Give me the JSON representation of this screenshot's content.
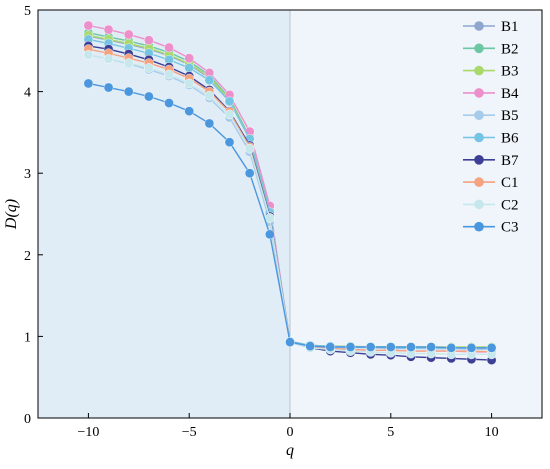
{
  "chart_data": {
    "type": "line",
    "title": "",
    "xlabel": "q",
    "ylabel": "D(q)",
    "xlim": [
      -12.5,
      12.5
    ],
    "ylim": [
      0,
      5
    ],
    "xticks": [
      -10,
      -5,
      0,
      5,
      10
    ],
    "xtick_labels": [
      "−10",
      "−5",
      "0",
      "5",
      "10"
    ],
    "yticks": [
      0,
      1,
      2,
      3,
      4,
      5
    ],
    "ytick_labels": [
      "0",
      "1",
      "2",
      "3",
      "4",
      "5"
    ],
    "grid": false,
    "legend_position": "top-right",
    "shaded_regions": [
      {
        "x_range": [
          -12.5,
          0
        ],
        "color": "#e1edf6"
      },
      {
        "x_range": [
          0,
          12.5
        ],
        "color": "#eff5fb"
      }
    ],
    "vertical_line_x": 0,
    "x": [
      -10,
      -9,
      -8,
      -7,
      -6,
      -5,
      -4,
      -3,
      -2,
      -1,
      0,
      1,
      2,
      3,
      4,
      5,
      6,
      7,
      8,
      9,
      10
    ],
    "series": [
      {
        "name": "B1",
        "color": "#8fa6ce",
        "values": [
          4.68,
          4.63,
          4.58,
          4.52,
          4.44,
          4.33,
          4.17,
          3.9,
          3.42,
          2.52,
          0.93,
          0.88,
          0.87,
          0.86,
          0.86,
          0.86,
          0.86,
          0.85,
          0.85,
          0.85,
          0.85
        ]
      },
      {
        "name": "B2",
        "color": "#6dc7a5",
        "values": [
          4.72,
          4.67,
          4.62,
          4.56,
          4.48,
          4.37,
          4.2,
          3.92,
          3.44,
          2.54,
          0.94,
          0.89,
          0.88,
          0.87,
          0.87,
          0.87,
          0.86,
          0.86,
          0.86,
          0.86,
          0.86
        ]
      },
      {
        "name": "B3",
        "color": "#a9d86b",
        "values": [
          4.69,
          4.64,
          4.59,
          4.53,
          4.45,
          4.34,
          4.18,
          3.9,
          3.42,
          2.52,
          0.93,
          0.89,
          0.88,
          0.88,
          0.87,
          0.87,
          0.87,
          0.87,
          0.87,
          0.87,
          0.87
        ]
      },
      {
        "name": "B4",
        "color": "#ec8fca",
        "values": [
          4.81,
          4.76,
          4.7,
          4.63,
          4.54,
          4.41,
          4.23,
          3.96,
          3.51,
          2.6,
          0.93,
          0.87,
          0.85,
          0.84,
          0.83,
          0.83,
          0.82,
          0.82,
          0.82,
          0.81,
          0.81
        ]
      },
      {
        "name": "B5",
        "color": "#a7cbea",
        "values": [
          4.45,
          4.4,
          4.34,
          4.27,
          4.19,
          4.08,
          3.92,
          3.68,
          3.26,
          2.4,
          0.93,
          0.88,
          0.87,
          0.86,
          0.86,
          0.85,
          0.85,
          0.85,
          0.85,
          0.84,
          0.84
        ]
      },
      {
        "name": "B6",
        "color": "#76c4e4",
        "values": [
          4.64,
          4.59,
          4.53,
          4.47,
          4.39,
          4.29,
          4.14,
          3.88,
          3.42,
          2.52,
          0.94,
          0.89,
          0.88,
          0.87,
          0.87,
          0.86,
          0.86,
          0.86,
          0.86,
          0.86,
          0.86
        ]
      },
      {
        "name": "B7",
        "color": "#3c3f95",
        "values": [
          4.56,
          4.52,
          4.46,
          4.39,
          4.3,
          4.19,
          4.02,
          3.76,
          3.34,
          2.47,
          0.93,
          0.86,
          0.82,
          0.8,
          0.78,
          0.77,
          0.75,
          0.74,
          0.73,
          0.72,
          0.71
        ]
      },
      {
        "name": "C1",
        "color": "#f5a27f",
        "values": [
          4.52,
          4.47,
          4.41,
          4.35,
          4.27,
          4.16,
          4.0,
          3.75,
          3.32,
          2.45,
          0.93,
          0.87,
          0.85,
          0.84,
          0.83,
          0.83,
          0.82,
          0.82,
          0.82,
          0.82,
          0.81
        ]
      },
      {
        "name": "C2",
        "color": "#c6e8ec",
        "values": [
          4.45,
          4.4,
          4.35,
          4.29,
          4.21,
          4.1,
          3.95,
          3.72,
          3.3,
          2.45,
          0.93,
          0.86,
          0.84,
          0.82,
          0.81,
          0.8,
          0.79,
          0.79,
          0.78,
          0.78,
          0.78
        ]
      },
      {
        "name": "C3",
        "color": "#4b97de",
        "values": [
          4.1,
          4.05,
          4.0,
          3.94,
          3.86,
          3.76,
          3.61,
          3.38,
          3.0,
          2.25,
          0.93,
          0.88,
          0.87,
          0.87,
          0.87,
          0.87,
          0.87,
          0.87,
          0.86,
          0.86,
          0.86
        ]
      }
    ]
  }
}
